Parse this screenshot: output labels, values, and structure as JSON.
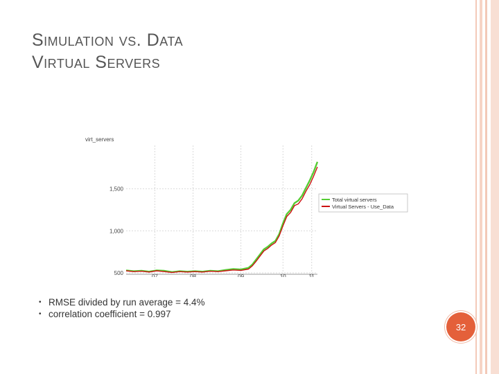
{
  "slide": {
    "title_line1": "Simulation vs. Data",
    "title_line2": "Virtual Servers",
    "bullets": [
      "RMSE divided by run average = 4.4%",
      "correlation coefficient = 0.997"
    ],
    "page_number": "32"
  },
  "colors": {
    "simulation": "#55cc33",
    "data": "#cc1111",
    "page_badge": "#e4603a",
    "grid": "#d9d9d9"
  },
  "chart_data": {
    "type": "line",
    "ylabel": "virt_servers",
    "y_ticks": [
      "500",
      "1,000",
      "1,500"
    ],
    "x_ticks": [
      "07",
      "08",
      "09",
      "10",
      "11"
    ],
    "ylim": [
      500,
      1900
    ],
    "xlim": [
      0,
      100
    ],
    "legend": [
      "Total virtual servers",
      "Virtual Servers - Use_Data"
    ],
    "legend_position": "right",
    "series": [
      {
        "name": "Total virtual servers",
        "x": [
          0,
          4,
          8,
          12,
          16,
          20,
          24,
          28,
          32,
          36,
          40,
          44,
          48,
          52,
          56,
          60,
          64,
          66,
          68,
          70,
          72,
          74,
          76,
          78,
          80,
          82,
          84,
          86,
          88,
          90,
          92,
          94,
          96,
          98,
          100
        ],
        "values": [
          530,
          520,
          525,
          515,
          530,
          525,
          510,
          520,
          515,
          520,
          515,
          525,
          520,
          535,
          545,
          540,
          560,
          600,
          660,
          720,
          780,
          810,
          850,
          880,
          960,
          1090,
          1200,
          1250,
          1330,
          1360,
          1420,
          1510,
          1600,
          1700,
          1820
        ]
      },
      {
        "name": "Virtual Servers - Use_Data",
        "x": [
          0,
          4,
          8,
          12,
          16,
          20,
          24,
          28,
          32,
          36,
          40,
          44,
          48,
          52,
          56,
          60,
          64,
          66,
          68,
          70,
          72,
          74,
          76,
          78,
          80,
          82,
          84,
          86,
          88,
          90,
          92,
          94,
          96,
          98,
          100
        ],
        "values": [
          525,
          515,
          520,
          510,
          525,
          515,
          505,
          515,
          510,
          515,
          510,
          520,
          515,
          525,
          535,
          530,
          545,
          585,
          640,
          700,
          760,
          790,
          830,
          860,
          940,
          1060,
          1170,
          1220,
          1300,
          1320,
          1380,
          1470,
          1550,
          1650,
          1760
        ]
      }
    ]
  }
}
